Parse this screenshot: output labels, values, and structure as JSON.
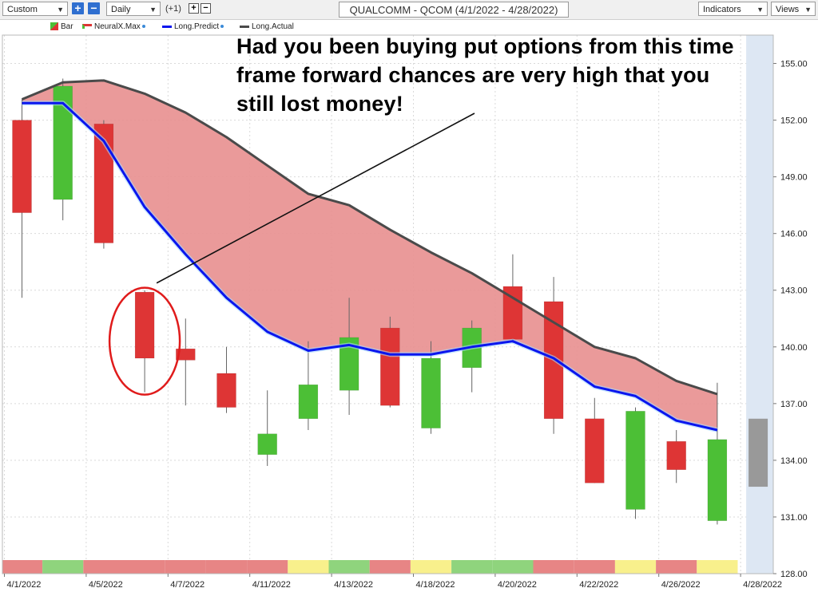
{
  "toolbar": {
    "period_select": "Custom",
    "interval_select": "Daily",
    "adjust_label": "(+1)",
    "plus_label": "+",
    "minus_label": "−",
    "indicators_label": "Indicators",
    "views_label": "Views"
  },
  "colors": {
    "up_candle": "#4cbf36",
    "down_candle": "#de3535",
    "forecast_candle": "#999999",
    "neural_max_line": "#0a16ee",
    "long_actual_line": "#4a4a4a",
    "fill_between": "#e88f8f",
    "future_zone": "#dde7f3",
    "band_red": "#e78585",
    "band_green": "#8fd47d",
    "band_yellow": "#f8f08c",
    "annotation_circle": "#e01b1b"
  },
  "annotation": {
    "text": "Had you been buying put options from this time frame forward chances are very high that you still lost money!"
  },
  "chart_data": {
    "type": "candlestick",
    "title": "QUALCOMM - QCOM (4/1/2022 - 4/28/2022)",
    "legend": [
      "Bar",
      "NeuralX.Max",
      "Long.Predict",
      "Long.Actual"
    ],
    "ylim": [
      128,
      156.5
    ],
    "y_ticks": [
      "155.00",
      "152.00",
      "149.00",
      "146.00",
      "143.00",
      "140.00",
      "137.00",
      "134.00",
      "131.00",
      "128.00"
    ],
    "x_tick_labels": [
      "4/1/2022",
      "4/5/2022",
      "4/7/2022",
      "4/11/2022",
      "4/13/2022",
      "4/18/2022",
      "4/20/2022",
      "4/22/2022",
      "4/26/2022",
      "4/28/2022"
    ],
    "x_tick_index": [
      0,
      2,
      4,
      6,
      8,
      10,
      12,
      14,
      16,
      18
    ],
    "candles": [
      {
        "date": "4/1/2022",
        "open": 152.0,
        "high": 153.1,
        "low": 142.6,
        "close": 147.1
      },
      {
        "date": "4/4/2022",
        "open": 147.8,
        "high": 154.2,
        "low": 146.7,
        "close": 153.8
      },
      {
        "date": "4/5/2022",
        "open": 151.8,
        "high": 152.0,
        "low": 145.2,
        "close": 145.5
      },
      {
        "date": "4/6/2022",
        "open": 142.9,
        "high": 143.0,
        "low": 137.6,
        "close": 139.4
      },
      {
        "date": "4/7/2022",
        "open": 139.9,
        "high": 141.5,
        "low": 136.9,
        "close": 139.3
      },
      {
        "date": "4/8/2022",
        "open": 138.6,
        "high": 140.0,
        "low": 136.5,
        "close": 136.8
      },
      {
        "date": "4/11/2022",
        "open": 134.3,
        "high": 137.7,
        "low": 133.7,
        "close": 135.4
      },
      {
        "date": "4/12/2022",
        "open": 136.2,
        "high": 140.3,
        "low": 135.6,
        "close": 138.0
      },
      {
        "date": "4/13/2022",
        "open": 137.7,
        "high": 142.6,
        "low": 136.4,
        "close": 140.5
      },
      {
        "date": "4/14/2022",
        "open": 141.0,
        "high": 141.6,
        "low": 136.8,
        "close": 136.9
      },
      {
        "date": "4/18/2022",
        "open": 135.7,
        "high": 140.3,
        "low": 135.4,
        "close": 139.4
      },
      {
        "date": "4/19/2022",
        "open": 138.9,
        "high": 141.4,
        "low": 137.6,
        "close": 141.0
      },
      {
        "date": "4/20/2022",
        "open": 143.2,
        "high": 144.9,
        "low": 140.2,
        "close": 140.4
      },
      {
        "date": "4/21/2022",
        "open": 142.4,
        "high": 143.7,
        "low": 135.4,
        "close": 136.2
      },
      {
        "date": "4/22/2022",
        "open": 136.2,
        "high": 137.3,
        "low": 132.8,
        "close": 132.8
      },
      {
        "date": "4/25/2022",
        "open": 131.4,
        "high": 136.8,
        "low": 130.9,
        "close": 136.6
      },
      {
        "date": "4/26/2022",
        "open": 135.0,
        "high": 135.6,
        "low": 132.8,
        "close": 133.5
      },
      {
        "date": "4/27/2022",
        "open": 130.8,
        "high": 138.1,
        "low": 130.6,
        "close": 135.1
      },
      {
        "date": "4/28/2022",
        "open": 136.2,
        "high": 136.2,
        "low": 132.6,
        "close": 132.6
      }
    ],
    "series": [
      {
        "name": "Long.Actual",
        "values": [
          153.1,
          154.0,
          154.1,
          153.4,
          152.4,
          151.1,
          149.6,
          148.1,
          147.5,
          146.2,
          145.0,
          143.9,
          142.6,
          141.3,
          140.0,
          139.4,
          138.2,
          137.5,
          null
        ]
      },
      {
        "name": "Long.Predict",
        "values": [
          152.9,
          152.9,
          150.9,
          147.4,
          144.9,
          142.6,
          140.8,
          139.8,
          140.1,
          139.6,
          139.6,
          140.0,
          140.3,
          139.4,
          137.9,
          137.4,
          136.1,
          135.6,
          null
        ]
      }
    ],
    "bottom_band": [
      "red",
      "green",
      "red",
      "red",
      "red",
      "red",
      "red",
      "yellow",
      "green",
      "red",
      "yellow",
      "green",
      "green",
      "red",
      "red",
      "yellow",
      "red",
      "yellow",
      "none"
    ]
  }
}
